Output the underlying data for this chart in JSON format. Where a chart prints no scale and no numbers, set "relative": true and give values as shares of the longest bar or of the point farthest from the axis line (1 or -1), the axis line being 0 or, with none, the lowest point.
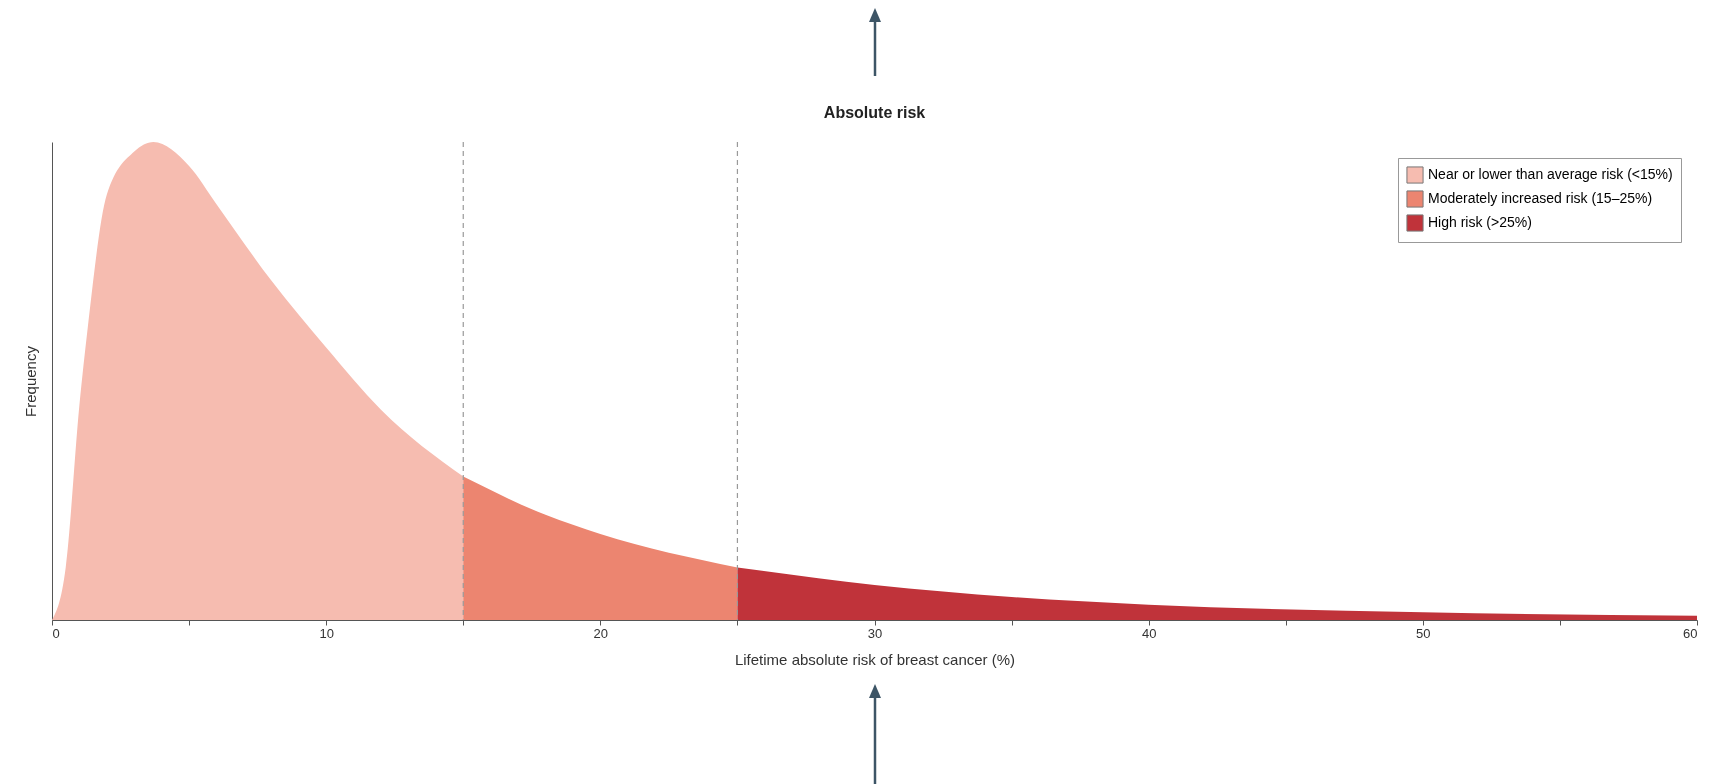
{
  "chart_data": {
    "type": "area",
    "title": "Absolute risk",
    "xlabel": "Lifetime absolute risk of breast cancer (%)",
    "ylabel": "Frequency",
    "relative": true,
    "xlim": [
      0,
      60
    ],
    "xticks": [
      0,
      {
        "value": 5,
        "label": null
      },
      10,
      {
        "value": 15,
        "label": null
      },
      20,
      {
        "value": 25,
        "label": null
      },
      30,
      {
        "value": 35,
        "label": null
      },
      40,
      {
        "value": 45,
        "label": null
      },
      50,
      {
        "value": 55,
        "label": null
      },
      60
    ],
    "legend": "top right",
    "series": [
      {
        "name": "Near or lower than average risk (<15%)",
        "color": "#f6bcb0",
        "x": [
          0,
          0.5,
          1,
          1.3,
          2,
          3,
          3.7,
          5,
          6,
          8,
          10,
          12,
          15
        ],
        "values": [
          0,
          0.11,
          0.45,
          0.61,
          0.89,
          0.98,
          1,
          0.95,
          0.87,
          0.71,
          0.57,
          0.44,
          0.3
        ]
      },
      {
        "name": "Moderately increased risk (15–25%)",
        "color": "#ec8570",
        "x": [
          15,
          18,
          20,
          25
        ],
        "values": [
          0.3,
          0.22,
          0.18,
          0.11
        ]
      },
      {
        "name": "High risk (>25%)",
        "color": "#c0333a",
        "x": [
          25,
          30,
          35,
          40,
          50,
          60
        ],
        "values": [
          0.11,
          0.073,
          0.048,
          0.032,
          0.016,
          0.009
        ]
      }
    ],
    "ref_lines": [
      {
        "axis": "x",
        "value": 15,
        "line_style": "dashed",
        "color": "#999999"
      },
      {
        "axis": "x",
        "value": 25,
        "line_style": "dashed",
        "color": "#999999"
      }
    ]
  }
}
